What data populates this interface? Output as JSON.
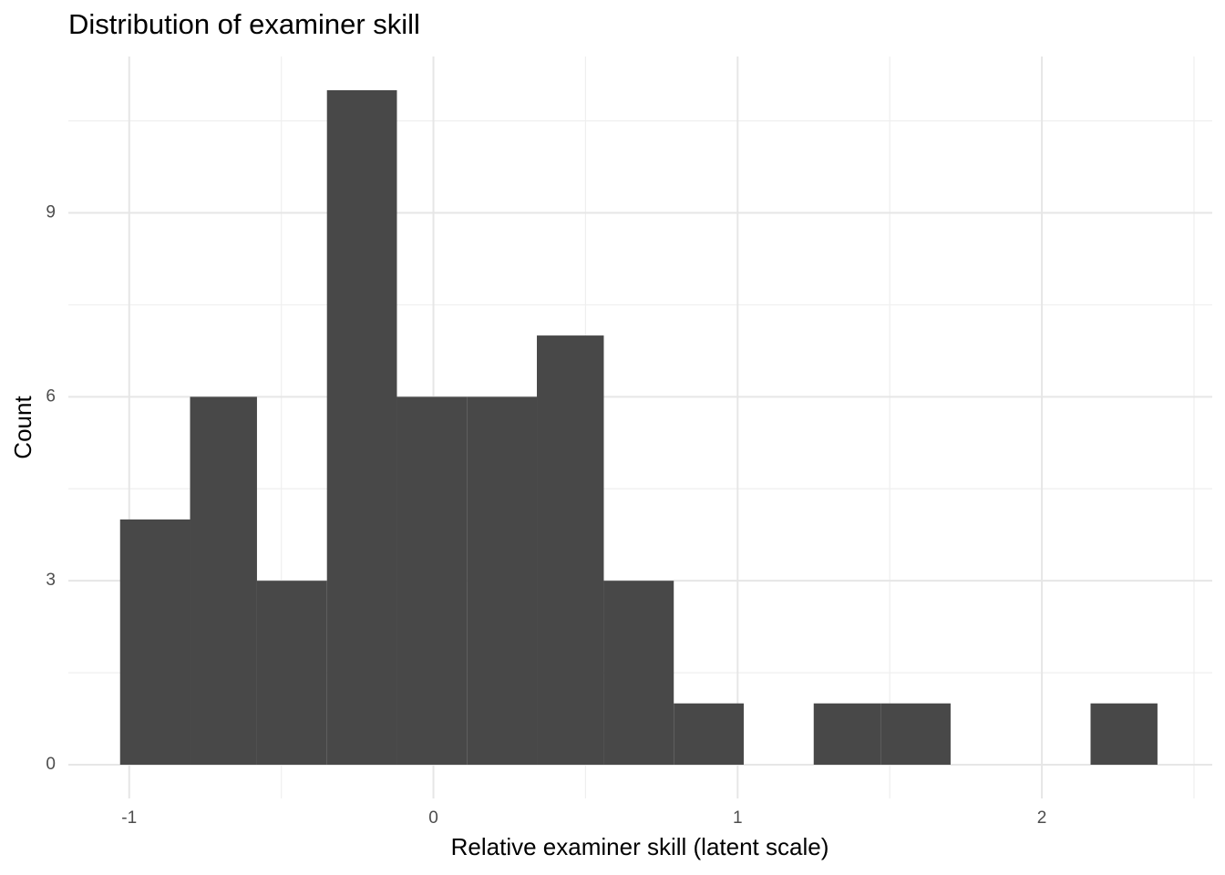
{
  "chart_data": {
    "type": "histogram",
    "title": "Distribution of examiner skill",
    "x_label": "Relative examiner skill (latent scale)",
    "y_label": "Count",
    "bins": [
      -1.03,
      -0.8,
      -0.58,
      -0.35,
      -0.12,
      0.11,
      0.34,
      0.56,
      0.79,
      1.02,
      1.25,
      1.47,
      1.7,
      1.93,
      2.16,
      2.38
    ],
    "values": [
      4,
      6,
      3,
      11,
      6,
      6,
      7,
      3,
      1,
      0,
      1,
      1,
      0,
      0,
      1
    ],
    "color": "#484848",
    "xlim": [
      -1.2,
      2.56
    ],
    "xticks": [
      -1,
      0,
      1,
      2
    ],
    "ylim": [
      -0.55,
      11.55
    ],
    "yticks": [
      0,
      3,
      6,
      9
    ],
    "grid": true
  }
}
